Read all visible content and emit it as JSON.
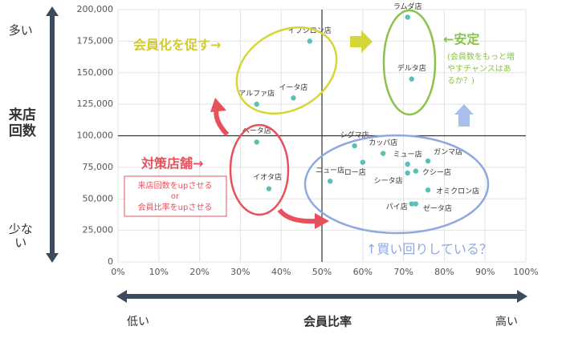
{
  "chart_data": {
    "type": "scatter",
    "x_label": "会員比率",
    "x_low": "低い",
    "x_high": "高い",
    "y_label": "来店回数",
    "y_high": "多い",
    "y_low": "少ない",
    "xlim": [
      0,
      100
    ],
    "ylim": [
      0,
      200000
    ],
    "xticks": [
      {
        "value": 0,
        "label": "0%"
      },
      {
        "value": 10,
        "label": "10%"
      },
      {
        "value": 20,
        "label": "20%"
      },
      {
        "value": 30,
        "label": "30%"
      },
      {
        "value": 40,
        "label": "40%"
      },
      {
        "value": 50,
        "label": "50%"
      },
      {
        "value": 60,
        "label": "60%"
      },
      {
        "value": 70,
        "label": "70%"
      },
      {
        "value": 80,
        "label": "80%"
      },
      {
        "value": 90,
        "label": "90%"
      },
      {
        "value": 100,
        "label": "100%"
      }
    ],
    "yticks": [
      0,
      {
        "value": 25000,
        "label": "25,000"
      },
      {
        "value": 50000,
        "label": "50,000"
      },
      {
        "value": 75000,
        "label": "75,000"
      },
      {
        "value": 100000,
        "label": "100,000"
      },
      {
        "value": 125000,
        "label": "125,000"
      },
      {
        "value": 150000,
        "label": "150,000"
      },
      {
        "value": 175000,
        "label": "175,000"
      },
      {
        "value": {
          "value": 200000,
          "label": "200,000"
        },
        "label": "200,000"
      }
    ],
    "reference_x": 50,
    "reference_y": 100000,
    "grid": true,
    "color": "#5bbfb5",
    "labels": [
      "イプシロン店",
      "ラムダ店",
      "デルタ店",
      "アルファ店",
      "イータ店",
      "ベータ店",
      "イオタ店",
      "シグマ店",
      "カッパ店",
      "ミュー店",
      "ガンマ店",
      "ニュー店",
      "ロー店",
      "シータ店",
      "クシー店",
      "オミクロン店",
      "パイ店",
      "ゼータ店"
    ],
    "x": [
      47,
      71,
      72,
      34,
      43,
      34,
      37,
      58,
      65,
      71,
      76,
      52,
      60,
      71,
      73,
      76,
      72,
      73
    ],
    "values": [
      175000,
      194000,
      145000,
      125000,
      130000,
      95000,
      58000,
      92000,
      86000,
      77500,
      80000,
      64000,
      79000,
      70500,
      72000,
      57000,
      46000,
      46000
    ],
    "annotations": {
      "promote": "会員化を促す→",
      "stable": "←安定",
      "stable_note": [
        "(会員数をもっと増",
        "やすチャンスはあ",
        "るか？)"
      ],
      "action": "対策店舗→",
      "action_box": [
        "来店回数をupさせる",
        "or",
        "会員比率をupさせる"
      ],
      "cross_shop": "↑買い回りしている？"
    }
  }
}
